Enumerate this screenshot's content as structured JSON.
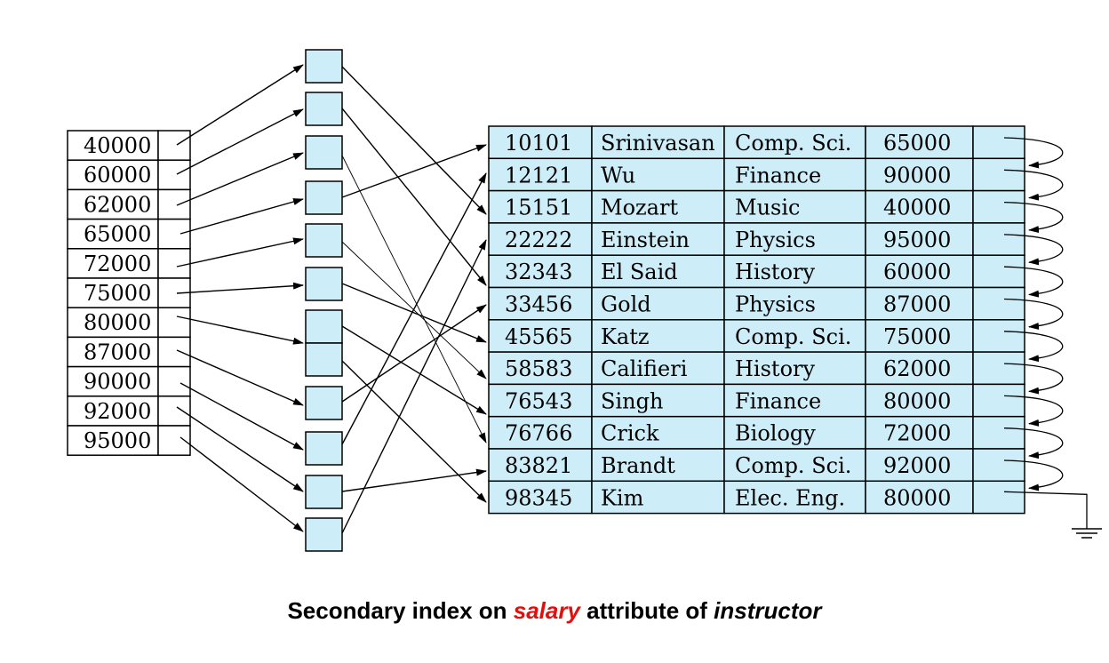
{
  "caption": {
    "prefix": "Secondary index on ",
    "attribute": "salary",
    "middle": " attribute of ",
    "relation": "instructor"
  },
  "index_keys": [
    "40000",
    "60000",
    "62000",
    "65000",
    "72000",
    "75000",
    "80000",
    "87000",
    "90000",
    "92000",
    "95000"
  ],
  "records": [
    {
      "id": "10101",
      "name": "Srinivasan",
      "dept": "Comp. Sci.",
      "salary": "65000"
    },
    {
      "id": "12121",
      "name": "Wu",
      "dept": "Finance",
      "salary": "90000"
    },
    {
      "id": "15151",
      "name": "Mozart",
      "dept": "Music",
      "salary": "40000"
    },
    {
      "id": "22222",
      "name": "Einstein",
      "dept": "Physics",
      "salary": "95000"
    },
    {
      "id": "32343",
      "name": "El Said",
      "dept": "History",
      "salary": "60000"
    },
    {
      "id": "33456",
      "name": "Gold",
      "dept": "Physics",
      "salary": "87000"
    },
    {
      "id": "45565",
      "name": "Katz",
      "dept": "Comp. Sci.",
      "salary": "75000"
    },
    {
      "id": "58583",
      "name": "Califieri",
      "dept": "History",
      "salary": "62000"
    },
    {
      "id": "76543",
      "name": "Singh",
      "dept": "Finance",
      "salary": "80000"
    },
    {
      "id": "76766",
      "name": "Crick",
      "dept": "Biology",
      "salary": "72000"
    },
    {
      "id": "83821",
      "name": "Brandt",
      "dept": "Comp. Sci.",
      "salary": "92000"
    },
    {
      "id": "98345",
      "name": "Kim",
      "dept": "Elec. Eng.",
      "salary": "80000"
    }
  ],
  "colors": {
    "bucket_fill": "#cdeef9",
    "record_fill": "#cdeef9",
    "caption_attribute": "#e01010"
  }
}
